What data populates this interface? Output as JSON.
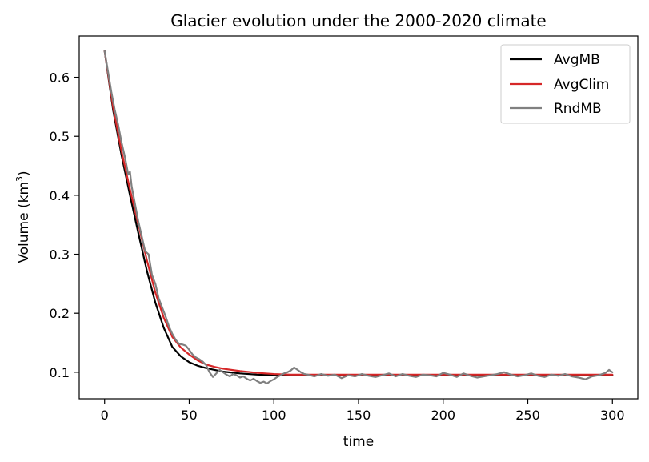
{
  "chart_data": {
    "type": "line",
    "title": "Glacier evolution under the 2000-2020 climate",
    "xlabel": "time",
    "ylabel_prefix": "Volume (km",
    "ylabel_sup": "3",
    "ylabel_suffix": ")",
    "xlim": [
      -15,
      315
    ],
    "ylim": [
      0.055,
      0.67
    ],
    "xticks": [
      0,
      50,
      100,
      150,
      200,
      250,
      300
    ],
    "yticks": [
      0.1,
      0.2,
      0.3,
      0.4,
      0.5,
      0.6
    ],
    "xtick_labels": [
      "0",
      "50",
      "100",
      "150",
      "200",
      "250",
      "300"
    ],
    "ytick_labels": [
      "0.1",
      "0.2",
      "0.3",
      "0.4",
      "0.5",
      "0.6"
    ],
    "grid": false,
    "legend_position": "top-right",
    "series": [
      {
        "name": "AvgMB",
        "color": "#000000",
        "x": [
          0,
          5,
          10,
          15,
          20,
          25,
          30,
          35,
          40,
          45,
          50,
          55,
          60,
          65,
          70,
          80,
          90,
          100,
          110,
          120,
          150,
          200,
          250,
          300
        ],
        "y": [
          0.645,
          0.545,
          0.468,
          0.4,
          0.335,
          0.272,
          0.218,
          0.175,
          0.143,
          0.127,
          0.117,
          0.111,
          0.107,
          0.104,
          0.101,
          0.098,
          0.096,
          0.095,
          0.095,
          0.095,
          0.095,
          0.095,
          0.095,
          0.095
        ]
      },
      {
        "name": "AvgClim",
        "color": "#d62728",
        "x": [
          0,
          5,
          10,
          15,
          20,
          25,
          30,
          35,
          40,
          45,
          50,
          55,
          60,
          65,
          70,
          80,
          90,
          100,
          110,
          120,
          150,
          200,
          250,
          300
        ],
        "y": [
          0.645,
          0.55,
          0.475,
          0.41,
          0.35,
          0.29,
          0.235,
          0.192,
          0.16,
          0.142,
          0.13,
          0.12,
          0.113,
          0.109,
          0.106,
          0.102,
          0.099,
          0.097,
          0.096,
          0.096,
          0.096,
          0.096,
          0.096,
          0.096
        ]
      },
      {
        "name": "RndMB",
        "color": "#808080",
        "x": [
          0,
          2,
          4,
          5,
          6,
          8,
          10,
          12,
          14,
          15,
          16,
          18,
          20,
          22,
          24,
          26,
          28,
          30,
          32,
          34,
          36,
          38,
          40,
          42,
          44,
          46,
          48,
          50,
          52,
          54,
          56,
          58,
          60,
          62,
          64,
          66,
          68,
          70,
          72,
          74,
          76,
          78,
          80,
          82,
          84,
          86,
          88,
          90,
          92,
          94,
          96,
          98,
          100,
          102,
          104,
          106,
          108,
          110,
          112,
          114,
          116,
          118,
          120,
          124,
          128,
          132,
          136,
          140,
          144,
          148,
          152,
          156,
          160,
          164,
          168,
          172,
          176,
          180,
          184,
          188,
          192,
          196,
          200,
          204,
          208,
          212,
          216,
          220,
          224,
          228,
          232,
          236,
          240,
          244,
          248,
          252,
          256,
          260,
          264,
          268,
          272,
          276,
          280,
          284,
          288,
          292,
          296,
          298,
          300
        ],
        "y": [
          0.645,
          0.61,
          0.575,
          0.56,
          0.545,
          0.52,
          0.49,
          0.465,
          0.435,
          0.44,
          0.415,
          0.385,
          0.355,
          0.33,
          0.305,
          0.3,
          0.265,
          0.25,
          0.225,
          0.21,
          0.195,
          0.178,
          0.165,
          0.155,
          0.148,
          0.147,
          0.145,
          0.138,
          0.13,
          0.125,
          0.122,
          0.118,
          0.112,
          0.1,
          0.092,
          0.098,
          0.104,
          0.1,
          0.096,
          0.093,
          0.097,
          0.095,
          0.091,
          0.093,
          0.089,
          0.086,
          0.089,
          0.085,
          0.082,
          0.084,
          0.081,
          0.085,
          0.088,
          0.092,
          0.095,
          0.098,
          0.1,
          0.103,
          0.108,
          0.104,
          0.1,
          0.097,
          0.096,
          0.093,
          0.097,
          0.094,
          0.096,
          0.09,
          0.095,
          0.093,
          0.097,
          0.094,
          0.092,
          0.095,
          0.098,
          0.093,
          0.097,
          0.094,
          0.092,
          0.096,
          0.095,
          0.093,
          0.099,
          0.096,
          0.092,
          0.098,
          0.094,
          0.091,
          0.093,
          0.095,
          0.097,
          0.1,
          0.096,
          0.093,
          0.095,
          0.098,
          0.094,
          0.092,
          0.096,
          0.094,
          0.097,
          0.093,
          0.091,
          0.088,
          0.093,
          0.095,
          0.099,
          0.104,
          0.1
        ]
      }
    ]
  }
}
